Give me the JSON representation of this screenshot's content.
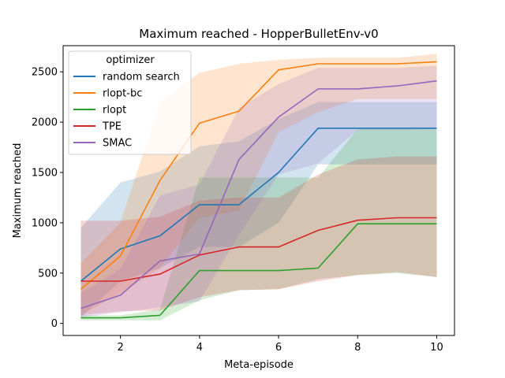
{
  "chart_data": {
    "type": "line",
    "title": "Maximum reached - HopperBulletEnv-v0",
    "xlabel": "Meta-episode",
    "ylabel": "Maximum reached",
    "xlim": [
      0.55,
      10.45
    ],
    "ylim": [
      -120,
      2760
    ],
    "xticks": [
      2,
      4,
      6,
      8,
      10
    ],
    "yticks": [
      0,
      500,
      1000,
      1500,
      2000,
      2500
    ],
    "grid": false,
    "legend_title": "optimizer",
    "legend_placement": "top-left",
    "x": [
      1,
      2,
      3,
      4,
      5,
      6,
      7,
      8,
      9,
      10
    ],
    "series": [
      {
        "name": "random search",
        "color": "#1f77b4",
        "values": [
          420,
          740,
          870,
          1180,
          1180,
          1500,
          1940,
          1940,
          1940,
          1940
        ],
        "lower": [
          60,
          420,
          550,
          760,
          760,
          1000,
          1580,
          1580,
          1580,
          1580
        ],
        "upper": [
          950,
          1400,
          1510,
          1760,
          1810,
          2030,
          2200,
          2200,
          2200,
          2200
        ]
      },
      {
        "name": "rlopt-bc",
        "color": "#ff7f0e",
        "values": [
          340,
          670,
          1420,
          1990,
          2110,
          2520,
          2580,
          2580,
          2580,
          2600
        ],
        "lower": [
          80,
          300,
          550,
          1050,
          1120,
          1900,
          2100,
          2230,
          2230,
          2230
        ],
        "upper": [
          600,
          1000,
          2200,
          2490,
          2580,
          2620,
          2640,
          2640,
          2640,
          2680
        ]
      },
      {
        "name": "rlopt",
        "color": "#2ca02c",
        "values": [
          55,
          55,
          80,
          525,
          525,
          525,
          550,
          990,
          990,
          990
        ],
        "lower": [
          30,
          30,
          30,
          230,
          330,
          340,
          440,
          480,
          500,
          460
        ],
        "upper": [
          80,
          80,
          140,
          1450,
          1450,
          1450,
          1450,
          1930,
          1930,
          1930
        ]
      },
      {
        "name": "TPE",
        "color": "#d62728",
        "values": [
          420,
          420,
          490,
          680,
          760,
          760,
          925,
          1025,
          1050,
          1050
        ],
        "lower": [
          80,
          120,
          130,
          260,
          330,
          340,
          420,
          480,
          510,
          460
        ],
        "upper": [
          1020,
          1020,
          1060,
          1220,
          1250,
          1250,
          1480,
          1630,
          1660,
          1660
        ]
      },
      {
        "name": "SMAC",
        "color": "#9467bd",
        "values": [
          150,
          280,
          620,
          690,
          1630,
          2050,
          2330,
          2330,
          2360,
          2410
        ],
        "lower": [
          60,
          110,
          160,
          220,
          880,
          1480,
          1590,
          1920,
          1920,
          1930
        ],
        "upper": [
          300,
          540,
          1270,
          1380,
          2140,
          2380,
          2540,
          2540,
          2540,
          2560
        ]
      }
    ]
  }
}
